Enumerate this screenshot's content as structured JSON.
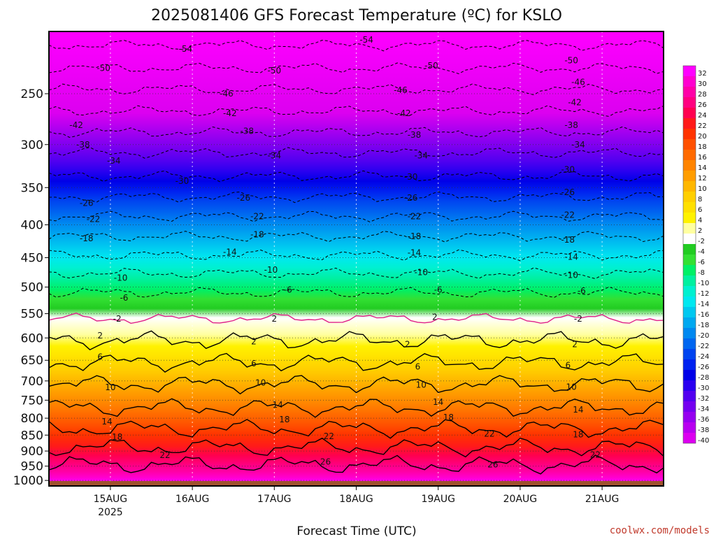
{
  "chart_data": {
    "type": "heatmap",
    "title": "2025081406 GFS Forecast Temperature (ºC) for KSLO",
    "xlabel": "Forecast Time (UTC)",
    "ylabel": "",
    "credit": "coolwx.com/models",
    "x_ticks": [
      {
        "label": "15AUG",
        "sublabel": "2025",
        "hours": 18
      },
      {
        "label": "16AUG",
        "sublabel": "",
        "hours": 42
      },
      {
        "label": "17AUG",
        "sublabel": "",
        "hours": 66
      },
      {
        "label": "18AUG",
        "sublabel": "",
        "hours": 90
      },
      {
        "label": "19AUG",
        "sublabel": "",
        "hours": 114
      },
      {
        "label": "20AUG",
        "sublabel": "",
        "hours": 138
      },
      {
        "label": "21AUG",
        "sublabel": "",
        "hours": 162
      }
    ],
    "xlim_hours": [
      0,
      180
    ],
    "y_ticks": [
      250,
      300,
      350,
      400,
      450,
      500,
      550,
      600,
      650,
      700,
      750,
      800,
      850,
      900,
      950,
      1000
    ],
    "ylim_hpa": [
      1020,
      200
    ],
    "y_scale": "log-pressure",
    "grid": true,
    "units": "ºC",
    "colorbar": {
      "levels": [
        32,
        30,
        28,
        26,
        24,
        22,
        20,
        18,
        16,
        14,
        12,
        10,
        8,
        6,
        4,
        2,
        -2,
        -4,
        -6,
        -8,
        -10,
        -12,
        -14,
        -16,
        -18,
        -20,
        -22,
        -24,
        -26,
        -28,
        -30,
        -32,
        -34,
        -36,
        -38,
        -40
      ],
      "colors": [
        "#ff00ff",
        "#ff00d0",
        "#ff00a8",
        "#ff0080",
        "#ff0050",
        "#ff1a1a",
        "#ff3300",
        "#ff5000",
        "#ff6a00",
        "#ff8400",
        "#ff9d00",
        "#ffb700",
        "#ffcf00",
        "#ffe000",
        "#fff200",
        "#ffffa0",
        "#ffffff",
        "#22cc22",
        "#33e033",
        "#00f066",
        "#00f0a0",
        "#00f0d0",
        "#00e8f0",
        "#00c8f0",
        "#00a8f0",
        "#0088f0",
        "#0066f0",
        "#0044f0",
        "#0022f0",
        "#0000e8",
        "#2a00f0",
        "#5200f0",
        "#7400f0",
        "#9600f0",
        "#b800f0",
        "#dc00f0"
      ]
    },
    "isotherm_labels": [
      {
        "text": "-54",
        "hours": 40,
        "hpa": 213
      },
      {
        "text": "-54",
        "hours": 93,
        "hpa": 206
      },
      {
        "text": "-50",
        "hours": 16,
        "hpa": 228
      },
      {
        "text": "-50",
        "hours": 66,
        "hpa": 230
      },
      {
        "text": "-50",
        "hours": 112,
        "hpa": 226
      },
      {
        "text": "-50",
        "hours": 153,
        "hpa": 222
      },
      {
        "text": "-46",
        "hours": 52,
        "hpa": 250
      },
      {
        "text": "-46",
        "hours": 103,
        "hpa": 247
      },
      {
        "text": "-46",
        "hours": 155,
        "hpa": 240
      },
      {
        "text": "-42",
        "hours": 8,
        "hpa": 280
      },
      {
        "text": "-42",
        "hours": 53,
        "hpa": 268
      },
      {
        "text": "-42",
        "hours": 104,
        "hpa": 268
      },
      {
        "text": "-42",
        "hours": 154,
        "hpa": 258
      },
      {
        "text": "-38",
        "hours": 10,
        "hpa": 300
      },
      {
        "text": "-38",
        "hours": 58,
        "hpa": 286
      },
      {
        "text": "-38",
        "hours": 107,
        "hpa": 290
      },
      {
        "text": "-38",
        "hours": 153,
        "hpa": 280
      },
      {
        "text": "-34",
        "hours": 19,
        "hpa": 318
      },
      {
        "text": "-34",
        "hours": 66,
        "hpa": 312
      },
      {
        "text": "-34",
        "hours": 109,
        "hpa": 312
      },
      {
        "text": "-34",
        "hours": 155,
        "hpa": 300
      },
      {
        "text": "-30",
        "hours": 39,
        "hpa": 342
      },
      {
        "text": "-30",
        "hours": 106,
        "hpa": 337
      },
      {
        "text": "-30",
        "hours": 152,
        "hpa": 328
      },
      {
        "text": "-26",
        "hours": 11,
        "hpa": 370
      },
      {
        "text": "-26",
        "hours": 57,
        "hpa": 363
      },
      {
        "text": "-26",
        "hours": 106,
        "hpa": 363
      },
      {
        "text": "-26",
        "hours": 152,
        "hpa": 356
      },
      {
        "text": "-22",
        "hours": 13,
        "hpa": 392
      },
      {
        "text": "-22",
        "hours": 61,
        "hpa": 388
      },
      {
        "text": "-22",
        "hours": 107,
        "hpa": 388
      },
      {
        "text": "-22",
        "hours": 152,
        "hpa": 386
      },
      {
        "text": "-18",
        "hours": 11,
        "hpa": 420
      },
      {
        "text": "-18",
        "hours": 61,
        "hpa": 414
      },
      {
        "text": "-18",
        "hours": 107,
        "hpa": 417
      },
      {
        "text": "-18",
        "hours": 152,
        "hpa": 422
      },
      {
        "text": "-14",
        "hours": 53,
        "hpa": 441
      },
      {
        "text": "-14",
        "hours": 107,
        "hpa": 442
      },
      {
        "text": "-14",
        "hours": 153,
        "hpa": 449
      },
      {
        "text": "-10",
        "hours": 21,
        "hpa": 484
      },
      {
        "text": "-10",
        "hours": 65,
        "hpa": 470
      },
      {
        "text": "-10",
        "hours": 109,
        "hpa": 474
      },
      {
        "text": "-10",
        "hours": 153,
        "hpa": 479
      },
      {
        "text": "-6",
        "hours": 22,
        "hpa": 520
      },
      {
        "text": "-6",
        "hours": 70,
        "hpa": 505
      },
      {
        "text": "-6",
        "hours": 114,
        "hpa": 505
      },
      {
        "text": "-6",
        "hours": 156,
        "hpa": 507
      },
      {
        "text": "-2",
        "hours": 20,
        "hpa": 560
      },
      {
        "text": "-2",
        "hours": 155,
        "hpa": 560
      },
      {
        "text": "2",
        "hours": 66,
        "hpa": 560
      },
      {
        "text": "2",
        "hours": 113,
        "hpa": 557
      },
      {
        "text": "2",
        "hours": 15,
        "hpa": 595
      },
      {
        "text": "2",
        "hours": 60,
        "hpa": 608
      },
      {
        "text": "2",
        "hours": 105,
        "hpa": 614
      },
      {
        "text": "2",
        "hours": 154,
        "hpa": 614
      },
      {
        "text": "6",
        "hours": 15,
        "hpa": 642
      },
      {
        "text": "6",
        "hours": 60,
        "hpa": 658
      },
      {
        "text": "6",
        "hours": 108,
        "hpa": 665
      },
      {
        "text": "6",
        "hours": 152,
        "hpa": 662
      },
      {
        "text": "10",
        "hours": 18,
        "hpa": 716
      },
      {
        "text": "10",
        "hours": 62,
        "hpa": 705
      },
      {
        "text": "10",
        "hours": 109,
        "hpa": 710
      },
      {
        "text": "10",
        "hours": 153,
        "hpa": 715
      },
      {
        "text": "14",
        "hours": 17,
        "hpa": 810
      },
      {
        "text": "14",
        "hours": 67,
        "hpa": 763
      },
      {
        "text": "14",
        "hours": 114,
        "hpa": 755
      },
      {
        "text": "14",
        "hours": 155,
        "hpa": 776
      },
      {
        "text": "18",
        "hours": 20,
        "hpa": 856
      },
      {
        "text": "18",
        "hours": 69,
        "hpa": 804
      },
      {
        "text": "18",
        "hours": 117,
        "hpa": 798
      },
      {
        "text": "18",
        "hours": 155,
        "hpa": 848
      },
      {
        "text": "22",
        "hours": 34,
        "hpa": 914
      },
      {
        "text": "22",
        "hours": 82,
        "hpa": 854
      },
      {
        "text": "22",
        "hours": 129,
        "hpa": 846
      },
      {
        "text": "22",
        "hours": 160,
        "hpa": 912
      },
      {
        "text": "26",
        "hours": 81,
        "hpa": 935
      },
      {
        "text": "26",
        "hours": 130,
        "hpa": 945
      }
    ]
  }
}
